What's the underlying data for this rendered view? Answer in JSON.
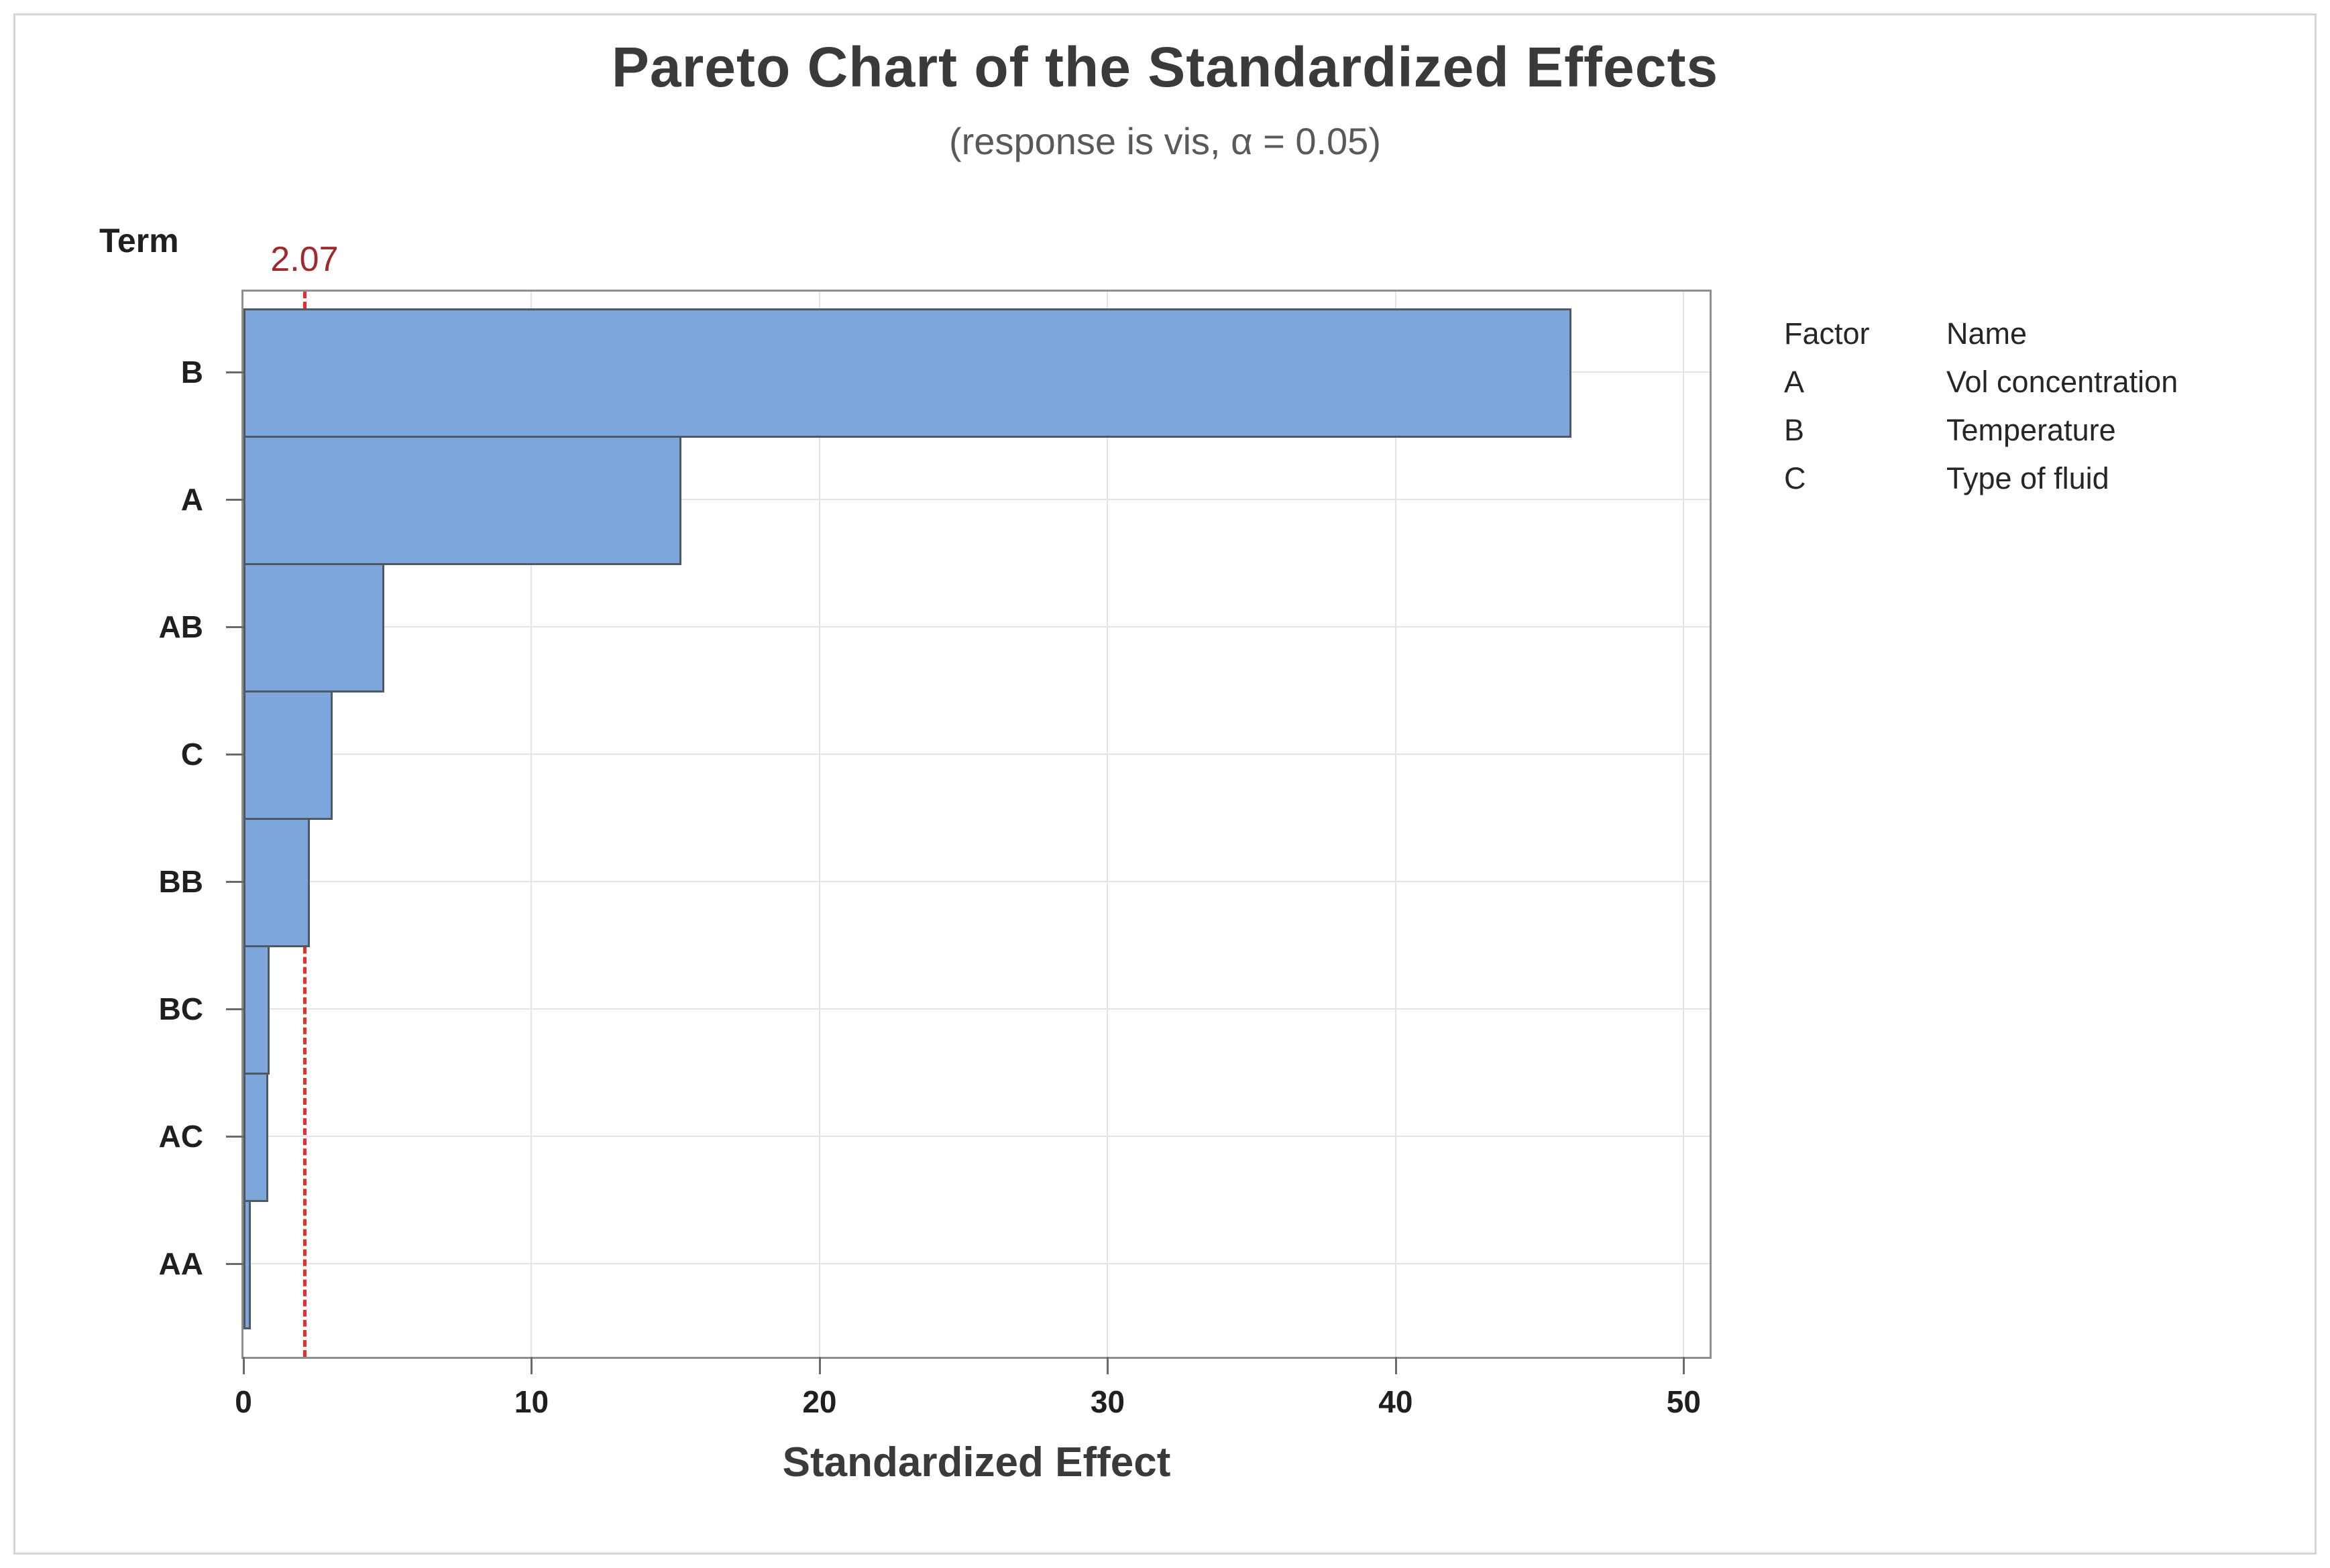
{
  "chart_data": {
    "type": "bar",
    "orientation": "horizontal",
    "title": "Pareto Chart of the Standardized Effects",
    "subtitle": "(response is vis, α = 0.05)",
    "y_axis_label": "Term",
    "xlabel": "Standardized Effect",
    "categories": [
      "B",
      "A",
      "AB",
      "C",
      "BB",
      "BC",
      "AC",
      "AA"
    ],
    "values": [
      46.1,
      15.2,
      4.9,
      3.1,
      2.3,
      0.9,
      0.85,
      0.25
    ],
    "x_ticks": [
      0,
      10,
      20,
      30,
      40,
      50
    ],
    "xlim": [
      0,
      50.9
    ],
    "grid": "both",
    "reference_line": {
      "value": 2.07,
      "label": "2.07"
    },
    "legend_position": "right"
  },
  "legend": {
    "headers": {
      "factor": "Factor",
      "name": "Name"
    },
    "rows": [
      {
        "factor": "A",
        "name": "Vol concentration"
      },
      {
        "factor": "B",
        "name": "Temperature"
      },
      {
        "factor": "C",
        "name": "Type of fluid"
      }
    ]
  },
  "colors": {
    "bar_fill": "#7da7db",
    "bar_edge": "#4e5964",
    "reference_line": "#e03131",
    "reference_label": "#a1292c",
    "gridline": "#e4e4e4",
    "plot_border": "#8f8f8f",
    "title_text": "#3a3a3a",
    "subtitle_text": "#595959",
    "tick_text": "#1f1f1f"
  }
}
